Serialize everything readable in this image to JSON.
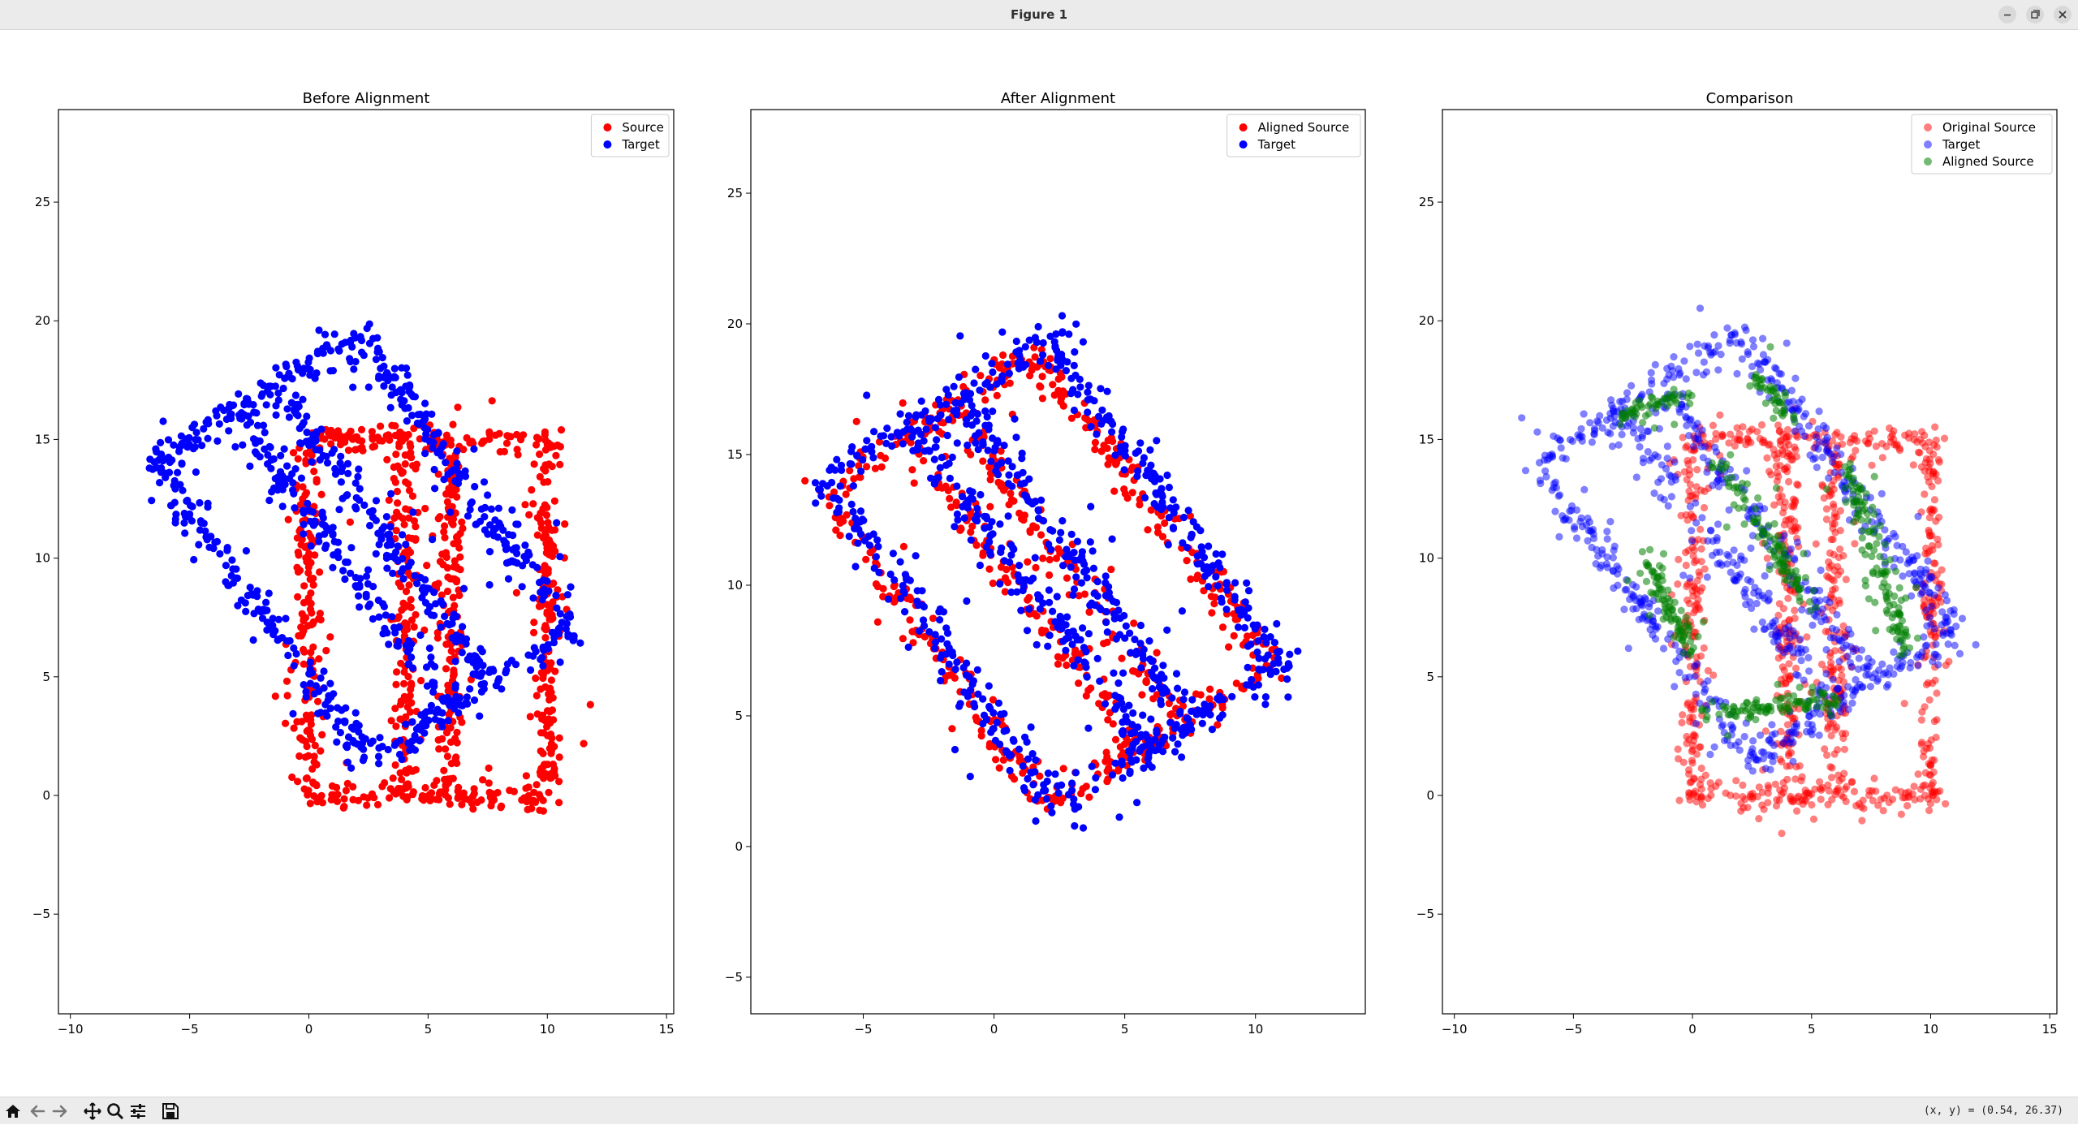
{
  "window": {
    "title": "Figure 1",
    "minimize_icon": "minimize-icon",
    "maximize_icon": "maximize-icon",
    "close_icon": "close-icon"
  },
  "toolbar": {
    "buttons": [
      "home-icon",
      "back-icon",
      "forward-icon",
      "pan-icon",
      "zoom-icon",
      "configure-subplots-icon",
      "save-icon"
    ],
    "coordinates": "(x, y) = (0.54, 26.37)"
  },
  "colors": {
    "red": "#ff0000",
    "blue": "#0000ff",
    "green": "#008000"
  },
  "chart_data": [
    {
      "type": "scatter",
      "title": "Before Alignment",
      "xlim": [
        -10.5,
        15.3
      ],
      "ylim": [
        -9.2,
        28.9
      ],
      "xticks": [
        -10,
        -5,
        0,
        5,
        10,
        15
      ],
      "yticks": [
        -5,
        0,
        5,
        10,
        15,
        20,
        25
      ],
      "legend": "top-right",
      "grid": false,
      "series": [
        {
          "name": "Source",
          "color": "#ff0000",
          "alpha": 1,
          "shape": "rectangle-outline-with-inner-bars",
          "corners": [
            [
              0,
              0
            ],
            [
              10,
              0
            ],
            [
              10,
              15
            ],
            [
              0,
              15
            ]
          ],
          "inner_lines_x": [
            4,
            6
          ],
          "spread": 0.45,
          "n": 900,
          "x_range": [
            -0.8,
            11.2
          ],
          "y_range": [
            -1.5,
            16.2
          ]
        },
        {
          "name": "Target",
          "color": "#0000ff",
          "alpha": 1,
          "shape": "rotated-rectangle-outline-with-inner-bars",
          "corners": [
            [
              -6.5,
              14
            ],
            [
              2,
              19.5
            ],
            [
              11,
              7
            ],
            [
              2.5,
              1.5
            ]
          ],
          "inner_line_fraction": [
            0.4,
            0.6
          ],
          "spread": 0.55,
          "n": 900,
          "x_range": [
            -7,
            11.6
          ],
          "y_range": [
            1,
            21
          ]
        }
      ]
    },
    {
      "type": "scatter",
      "title": "After Alignment",
      "xlim": [
        -9.3,
        14.2
      ],
      "ylim": [
        -6.4,
        28.2
      ],
      "xticks": [
        -5,
        0,
        5,
        10
      ],
      "yticks": [
        -5,
        0,
        5,
        10,
        15,
        20,
        25
      ],
      "legend": "top-right",
      "grid": false,
      "series": [
        {
          "name": "Aligned Source",
          "color": "#ff0000",
          "alpha": 1,
          "shape": "rotated-rectangle-outline-with-inner-bars",
          "corners": [
            [
              -6.5,
              13.5
            ],
            [
              1.5,
              18.8
            ],
            [
              10.8,
              7
            ],
            [
              2,
              1.5
            ]
          ],
          "inner_line_fraction": [
            0.4,
            0.6
          ],
          "spread": 0.45,
          "n": 700,
          "x_range": [
            -6.8,
            11.2
          ],
          "y_range": [
            0.8,
            19.4
          ]
        },
        {
          "name": "Target",
          "color": "#0000ff",
          "alpha": 1,
          "shape": "rotated-rectangle-outline-with-inner-bars",
          "corners": [
            [
              -6.5,
              14
            ],
            [
              2,
              19.5
            ],
            [
              11,
              7
            ],
            [
              2.5,
              1.5
            ]
          ],
          "inner_line_fraction": [
            0.4,
            0.6
          ],
          "spread": 0.55,
          "n": 900,
          "x_range": [
            -7,
            11.6
          ],
          "y_range": [
            0.6,
            21
          ]
        }
      ]
    },
    {
      "type": "scatter",
      "title": "Comparison",
      "xlim": [
        -10.5,
        15.3
      ],
      "ylim": [
        -9.2,
        28.9
      ],
      "xticks": [
        -10,
        -5,
        0,
        5,
        10,
        15
      ],
      "yticks": [
        -5,
        0,
        5,
        10,
        15,
        20,
        25
      ],
      "legend": "top-right",
      "grid": false,
      "series": [
        {
          "name": "Original Source",
          "color": "#ff0000",
          "alpha": 0.5,
          "shape": "rectangle-outline-with-inner-bars",
          "corners": [
            [
              0,
              0
            ],
            [
              10,
              0
            ],
            [
              10,
              15
            ],
            [
              0,
              15
            ]
          ],
          "inner_lines_x": [
            4,
            6
          ],
          "spread": 0.45,
          "n": 900,
          "x_range": [
            -0.8,
            11.2
          ],
          "y_range": [
            -1.5,
            16.2
          ]
        },
        {
          "name": "Target",
          "color": "#0000ff",
          "alpha": 0.5,
          "shape": "rotated-rectangle-outline-with-inner-bars",
          "corners": [
            [
              -6.5,
              14
            ],
            [
              2,
              19.5
            ],
            [
              11,
              7
            ],
            [
              2.5,
              1.5
            ]
          ],
          "inner_line_fraction": [
            0.4,
            0.6
          ],
          "spread": 0.55,
          "n": 900,
          "x_range": [
            -7,
            11.6
          ],
          "y_range": [
            1,
            21
          ]
        },
        {
          "name": "Aligned Source",
          "color": "#008000",
          "alpha": 0.55,
          "shape": "partial-rotated-rectangle-segments",
          "segments": [
            [
              [
                -3,
                16
              ],
              [
                0,
                17
              ]
            ],
            [
              [
                2.5,
                17.8
              ],
              [
                4,
                16
              ]
            ],
            [
              [
                -2,
                10
              ],
              [
                0,
                6
              ]
            ],
            [
              [
                6.5,
                14
              ],
              [
                9,
                6
              ]
            ],
            [
              [
                0.5,
                3.5
              ],
              [
                6,
                4
              ]
            ],
            [
              [
                1,
                14
              ],
              [
                5,
                8
              ]
            ]
          ],
          "spread": 0.35,
          "n": 500,
          "x_range": [
            -3.2,
            10
          ],
          "y_range": [
            1.5,
            18
          ]
        }
      ]
    }
  ]
}
